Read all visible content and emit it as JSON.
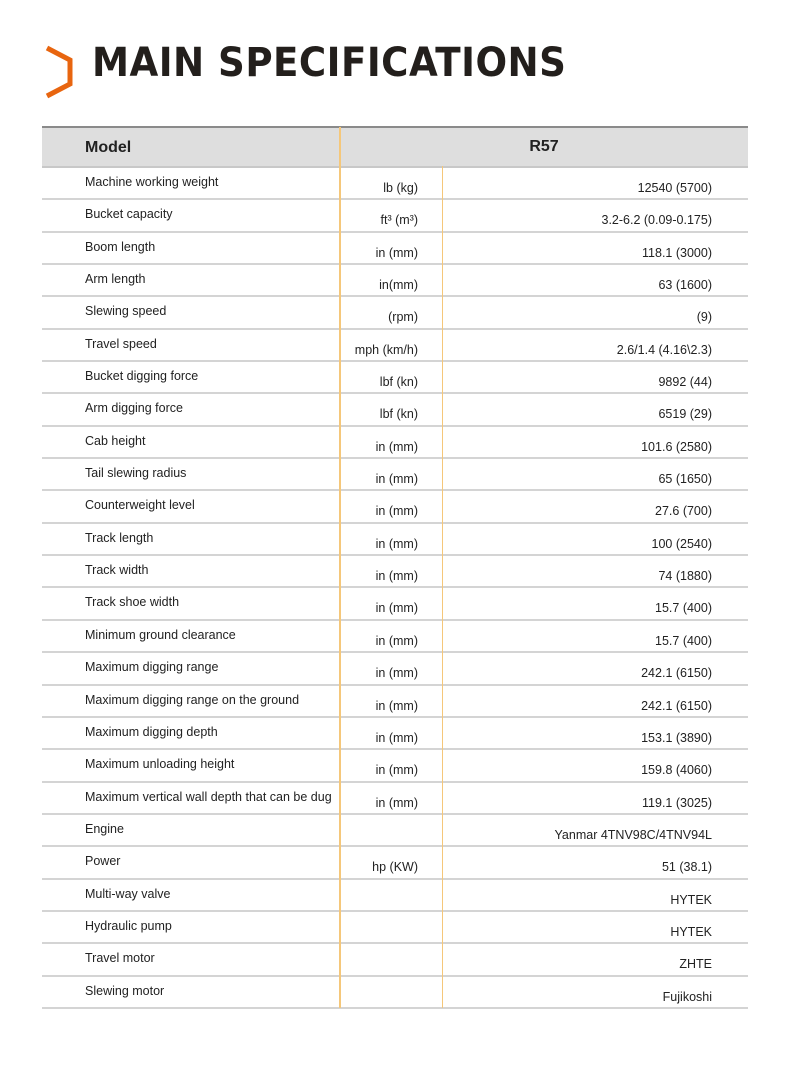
{
  "title": "MAIN SPECIFICATIONS",
  "accent_color": "#e8650f",
  "table": {
    "header_label": "Model",
    "header_model": "R57",
    "rows": [
      {
        "label": "Machine working weight",
        "unit": "lb (kg)",
        "value": "12540 (5700)"
      },
      {
        "label": "Bucket capacity",
        "unit": "ft³ (m³)",
        "value": "3.2-6.2 (0.09-0.175)"
      },
      {
        "label": "Boom length",
        "unit": "in (mm)",
        "value": "118.1 (3000)"
      },
      {
        "label": "Arm length",
        "unit": "in(mm)",
        "value": "63 (1600)"
      },
      {
        "label": "Slewing speed",
        "unit": "(rpm)",
        "value": "(9)"
      },
      {
        "label": "Travel speed",
        "unit": "mph (km/h)",
        "value": "2.6/1.4 (4.16\\2.3)"
      },
      {
        "label": "Bucket digging force",
        "unit": "lbf (kn)",
        "value": "9892 (44)"
      },
      {
        "label": "Arm digging force",
        "unit": "lbf (kn)",
        "value": "6519 (29)"
      },
      {
        "label": "Cab height",
        "unit": "in (mm)",
        "value": "101.6 (2580)"
      },
      {
        "label": "Tail slewing radius",
        "unit": "in (mm)",
        "value": "65 (1650)"
      },
      {
        "label": "Counterweight level",
        "unit": "in (mm)",
        "value": "27.6 (700)"
      },
      {
        "label": "Track length",
        "unit": "in (mm)",
        "value": "100 (2540)"
      },
      {
        "label": "Track width",
        "unit": "in (mm)",
        "value": "74 (1880)"
      },
      {
        "label": "Track shoe width",
        "unit": "in (mm)",
        "value": "15.7 (400)"
      },
      {
        "label": "Minimum ground clearance",
        "unit": "in (mm)",
        "value": "15.7 (400)"
      },
      {
        "label": "Maximum digging range",
        "unit": "in (mm)",
        "value": "242.1 (6150)"
      },
      {
        "label": "Maximum digging range on the ground",
        "unit": "in (mm)",
        "value": "242.1 (6150)"
      },
      {
        "label": "Maximum digging depth",
        "unit": "in (mm)",
        "value": "153.1 (3890)"
      },
      {
        "label": "Maximum unloading height",
        "unit": "in (mm)",
        "value": "159.8 (4060)"
      },
      {
        "label": "Maximum vertical wall depth that can be dug",
        "unit": "in (mm)",
        "value": "119.1 (3025)"
      },
      {
        "label": "Engine",
        "unit": "",
        "value": "Yanmar 4TNV98C/4TNV94L"
      },
      {
        "label": "Power",
        "unit": "hp (KW)",
        "value": "51 (38.1)"
      },
      {
        "label": "Multi-way valve",
        "unit": "",
        "value": "HYTEK"
      },
      {
        "label": "Hydraulic pump",
        "unit": "",
        "value": "HYTEK"
      },
      {
        "label": "Travel motor",
        "unit": "",
        "value": "ZHTE"
      },
      {
        "label": "Slewing motor",
        "unit": "",
        "value": "Fujikoshi"
      }
    ]
  }
}
